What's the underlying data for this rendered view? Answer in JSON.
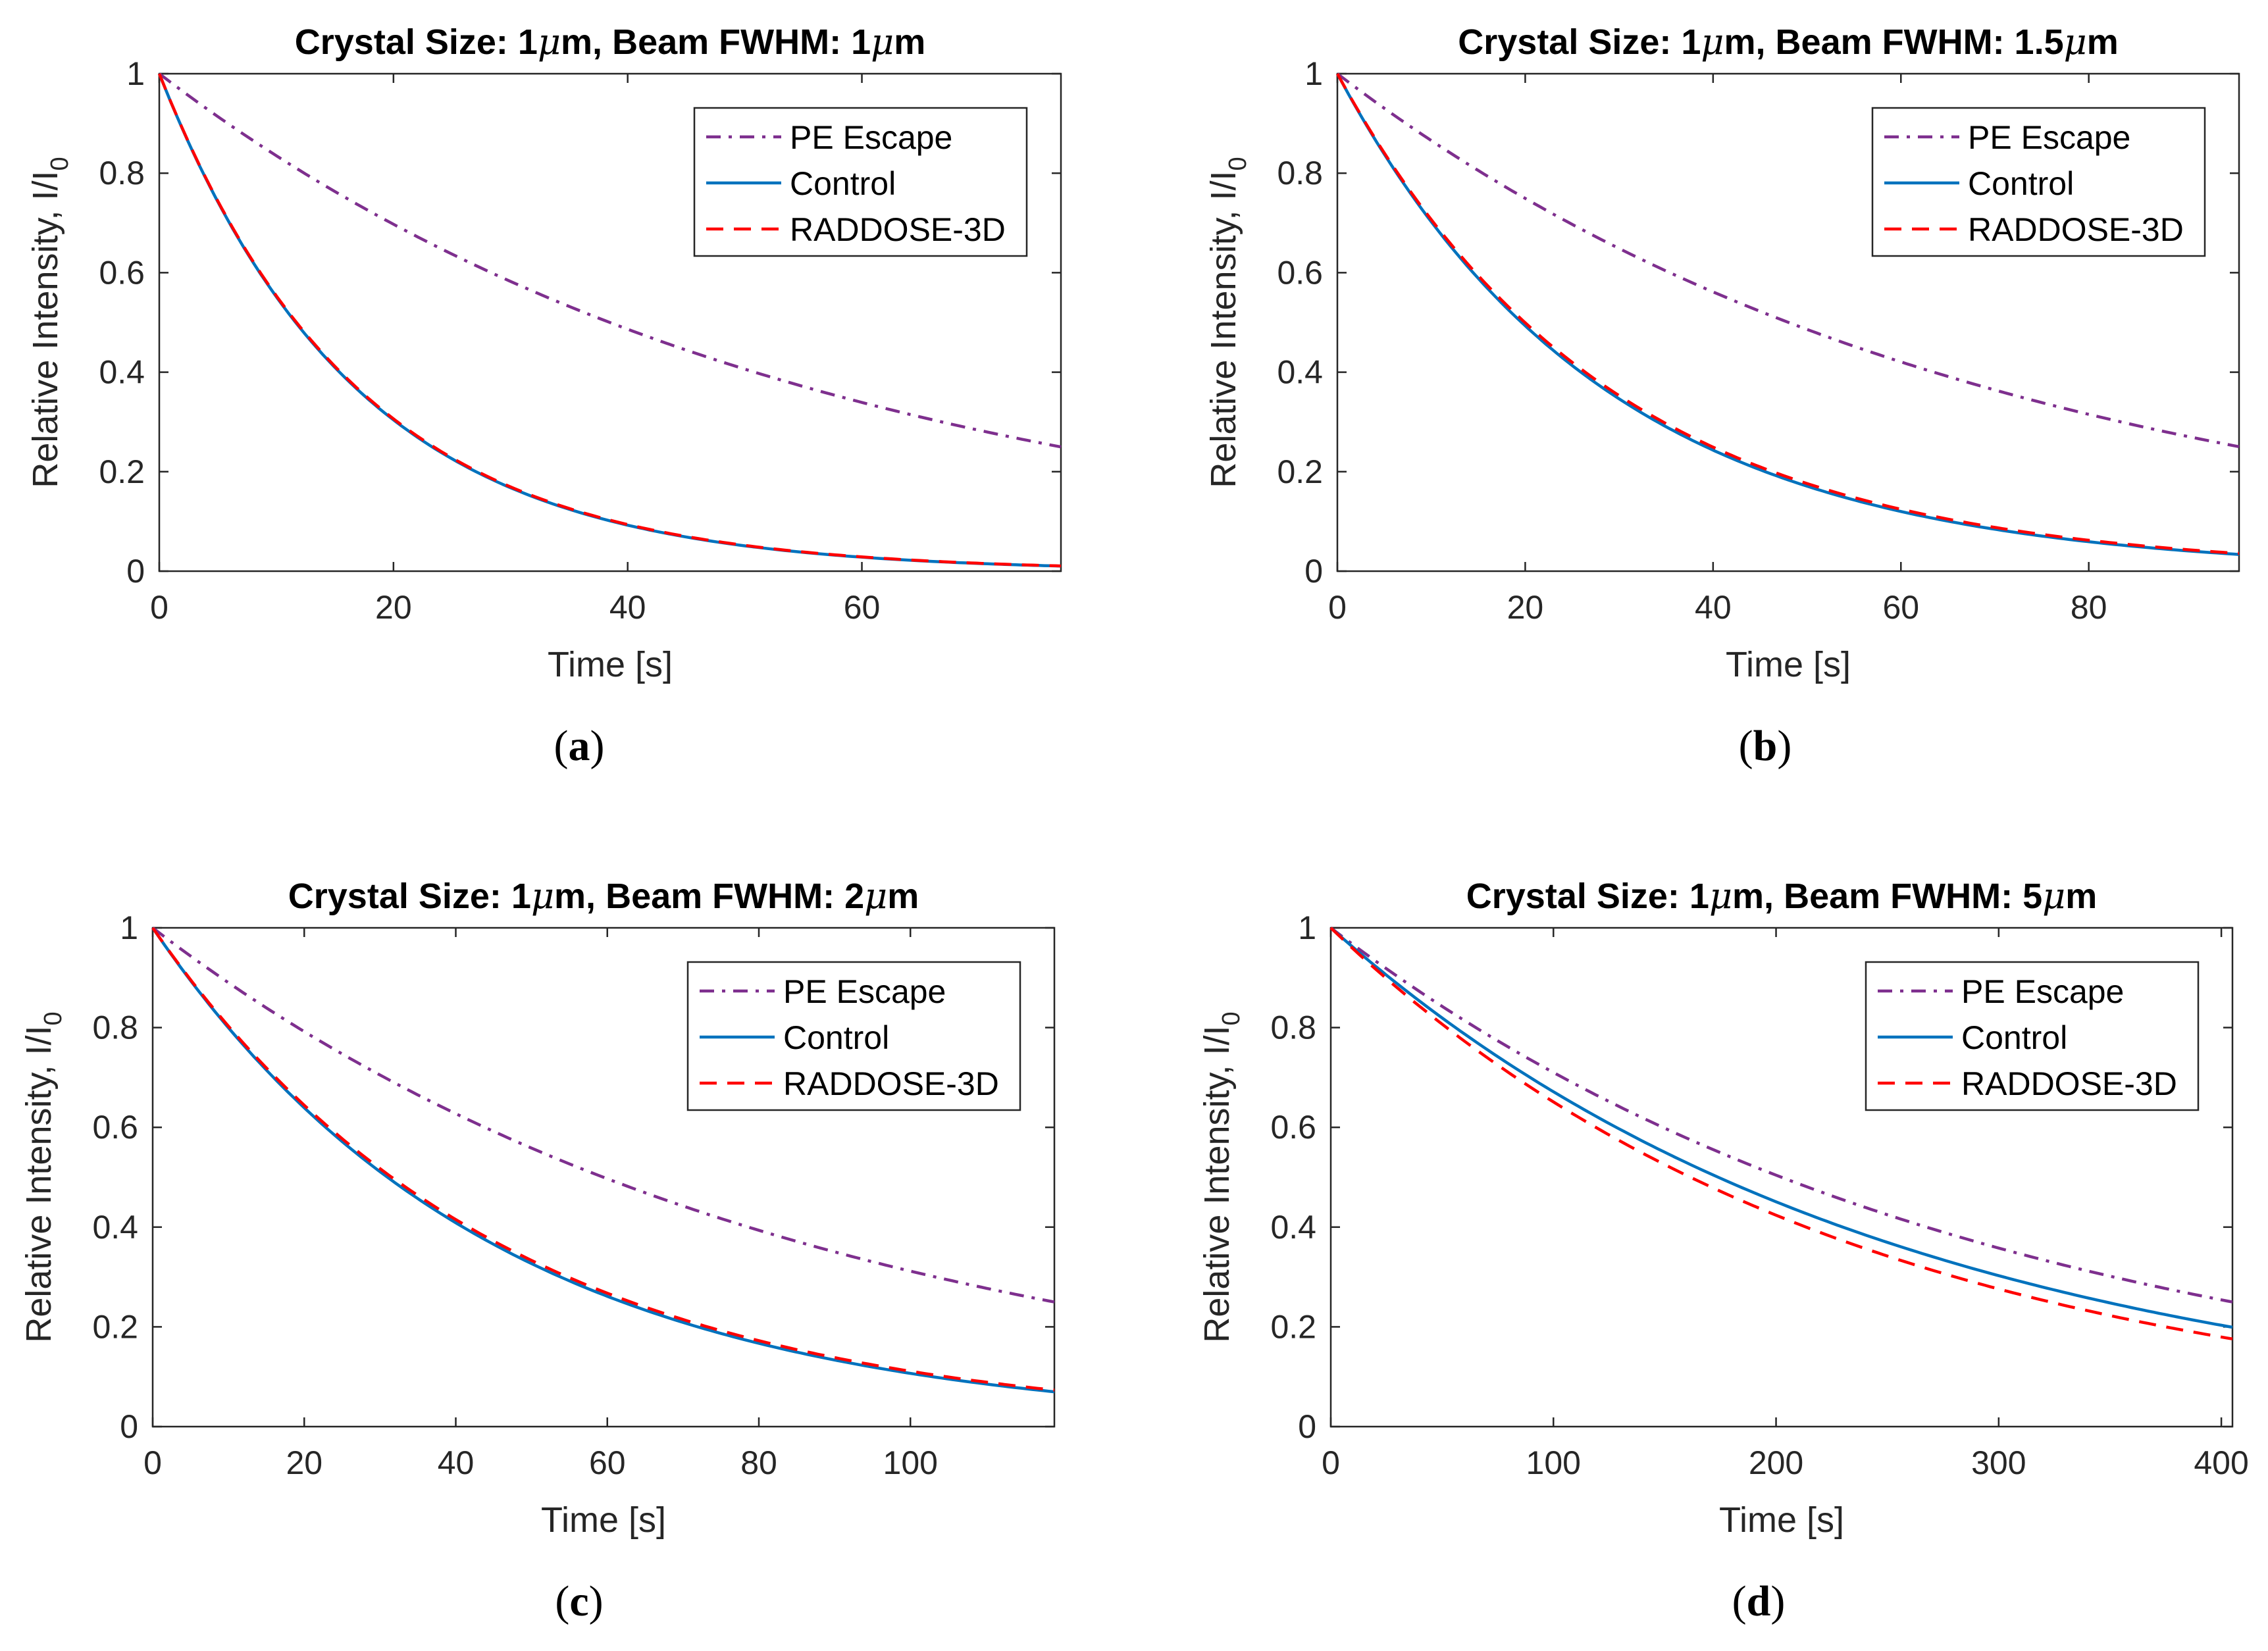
{
  "figure": {
    "colors": {
      "pe_escape": "#7E2F8E",
      "control": "#0072BD",
      "raddose": "#FF0000",
      "axis": "#262626"
    },
    "chart_data": [
      {
        "id": "a",
        "type": "line",
        "caption_letter": "a",
        "title_prefix": "Crystal Size: 1",
        "title_unit_symbol": "μ",
        "title_middle": "m, Beam FWHM: 1",
        "title_suffix": "m",
        "xlabel": "Time [s]",
        "ylabel_main": "Relative Intensity, I/I",
        "ylabel_sub": "0",
        "xlim": [
          0,
          77
        ],
        "ylim": [
          0,
          1
        ],
        "xticks": [
          0,
          20,
          40,
          60
        ],
        "yticks": [
          0,
          0.2,
          0.4,
          0.6,
          0.8,
          1
        ],
        "legend_location": "top-right",
        "series": [
          {
            "name": "PE Escape",
            "style": "dashdot",
            "tau": 55.5
          },
          {
            "name": "Control",
            "style": "solid",
            "tau": 16.8
          },
          {
            "name": "RADDOSE-3D",
            "style": "dashed",
            "tau": 16.9
          }
        ]
      },
      {
        "id": "b",
        "type": "line",
        "caption_letter": "b",
        "title_prefix": "Crystal Size: 1",
        "title_unit_symbol": "μ",
        "title_middle": "m, Beam FWHM: 1.5",
        "title_suffix": "m",
        "xlabel": "Time [s]",
        "ylabel_main": "Relative Intensity, I/I",
        "ylabel_sub": "0",
        "xlim": [
          0,
          96
        ],
        "ylim": [
          0,
          1
        ],
        "xticks": [
          0,
          20,
          40,
          60,
          80
        ],
        "yticks": [
          0,
          0.2,
          0.4,
          0.6,
          0.8,
          1
        ],
        "legend_location": "top-right",
        "series": [
          {
            "name": "PE Escape",
            "style": "dashdot",
            "tau": 69.3
          },
          {
            "name": "Control",
            "style": "solid",
            "tau": 28.3
          },
          {
            "name": "RADDOSE-3D",
            "style": "dashed",
            "tau": 28.8
          }
        ]
      },
      {
        "id": "c",
        "type": "line",
        "caption_letter": "c",
        "title_prefix": "Crystal Size: 1",
        "title_unit_symbol": "μ",
        "title_middle": "m, Beam FWHM: 2",
        "title_suffix": "m",
        "xlabel": "Time [s]",
        "ylabel_main": "Relative Intensity, I/I",
        "ylabel_sub": "0",
        "xlim": [
          0,
          119
        ],
        "ylim": [
          0,
          1
        ],
        "xticks": [
          0,
          20,
          40,
          60,
          80,
          100
        ],
        "yticks": [
          0,
          0.2,
          0.4,
          0.6,
          0.8,
          1
        ],
        "legend_location": "top-right",
        "series": [
          {
            "name": "PE Escape",
            "style": "dashdot",
            "tau": 85.8
          },
          {
            "name": "Control",
            "style": "solid",
            "tau": 44.7
          },
          {
            "name": "RADDOSE-3D",
            "style": "dashed",
            "tau": 45.5
          }
        ]
      },
      {
        "id": "d",
        "type": "line",
        "caption_letter": "d",
        "title_prefix": "Crystal Size: 1",
        "title_unit_symbol": "μ",
        "title_middle": "m, Beam FWHM: 5",
        "title_suffix": "m",
        "xlabel": "Time [s]",
        "ylabel_main": "Relative Intensity, I/I",
        "ylabel_sub": "0",
        "xlim": [
          0,
          405
        ],
        "ylim": [
          0,
          1
        ],
        "xticks": [
          0,
          100,
          200,
          300,
          400
        ],
        "yticks": [
          0,
          0.2,
          0.4,
          0.6,
          0.8,
          1
        ],
        "legend_location": "top-right",
        "series": [
          {
            "name": "PE Escape",
            "style": "dashdot",
            "tau": 292
          },
          {
            "name": "Control",
            "style": "solid",
            "tau": 251
          },
          {
            "name": "RADDOSE-3D",
            "style": "dashed",
            "tau": 233
          }
        ]
      }
    ]
  }
}
